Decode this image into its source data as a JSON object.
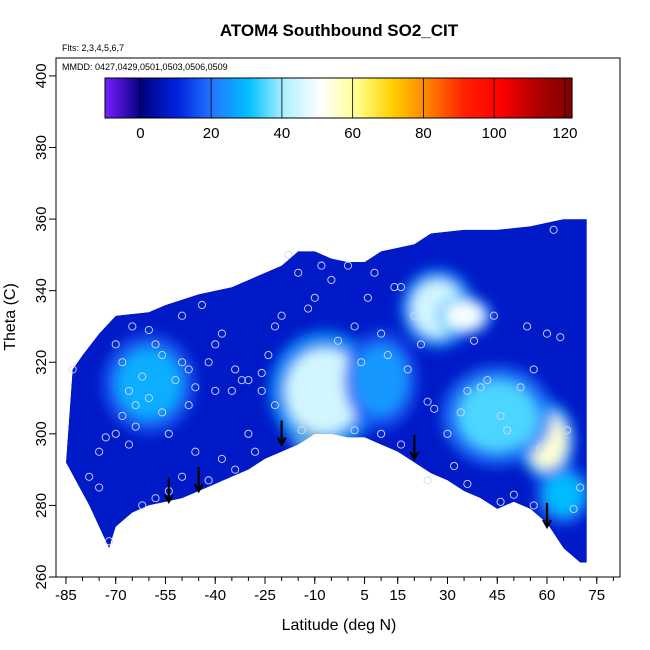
{
  "chart_data": {
    "type": "heatmap",
    "title": "ATOM4 Southbound SO2_CIT",
    "xlabel": "Latitude (deg N)",
    "ylabel": "Theta (C)",
    "xlim": [
      -88,
      82
    ],
    "ylim": [
      260,
      405
    ],
    "x_tick_labels": [
      "-85",
      "-70",
      "-55",
      "-40",
      "-25",
      "-10",
      "5",
      "15",
      "30",
      "45",
      "60",
      "75"
    ],
    "x_tick_values": [
      -85,
      -70,
      -55,
      -40,
      -25,
      -10,
      5,
      15,
      30,
      45,
      60,
      75
    ],
    "x_minor_step": 5,
    "y_tick_labels": [
      "260",
      "280",
      "300",
      "320",
      "340",
      "360",
      "380",
      "400"
    ],
    "y_tick_values": [
      260,
      280,
      300,
      320,
      340,
      360,
      380,
      400
    ],
    "annotations": [
      "Flts: 2,3,4,5,6,7",
      "MMDD: 0427,0429,0501,0503,0506,0509"
    ],
    "colorbar": {
      "range": [
        -10,
        122
      ],
      "tick_values": [
        0,
        20,
        40,
        60,
        80,
        100,
        120
      ],
      "tick_labels": [
        "0",
        "20",
        "40",
        "60",
        "80",
        "100",
        "120"
      ],
      "colors": [
        "#7a1fff",
        "#000080",
        "#0022dd",
        "#2277ff",
        "#00c0ff",
        "#b0f0ff",
        "#ffffff",
        "#ffff90",
        "#ffd000",
        "#ff8000",
        "#ff2000",
        "#ff0000",
        "#b00000",
        "#800000"
      ]
    },
    "grid": false,
    "surface": {
      "lower_boundary": [
        [
          -85,
          292
        ],
        [
          -78,
          280
        ],
        [
          -72,
          268
        ],
        [
          -70,
          274
        ],
        [
          -65,
          278
        ],
        [
          -60,
          280
        ],
        [
          -55,
          281
        ],
        [
          -50,
          282
        ],
        [
          -45,
          284
        ],
        [
          -40,
          286
        ],
        [
          -35,
          288
        ],
        [
          -30,
          290
        ],
        [
          -25,
          293
        ],
        [
          -20,
          295
        ],
        [
          -15,
          297
        ],
        [
          -10,
          300
        ],
        [
          -5,
          300
        ],
        [
          0,
          299
        ],
        [
          5,
          299
        ],
        [
          10,
          297
        ],
        [
          15,
          295
        ],
        [
          20,
          292
        ],
        [
          25,
          289
        ],
        [
          30,
          287
        ],
        [
          35,
          284
        ],
        [
          40,
          282
        ],
        [
          45,
          279
        ],
        [
          50,
          281
        ],
        [
          55,
          279
        ],
        [
          60,
          275
        ],
        [
          65,
          268
        ],
        [
          70,
          264
        ],
        [
          72,
          264
        ]
      ],
      "upper_boundary": [
        [
          -85,
          292
        ],
        [
          -83,
          318
        ],
        [
          -80,
          322
        ],
        [
          -75,
          328
        ],
        [
          -70,
          333
        ],
        [
          -60,
          334
        ],
        [
          -55,
          336
        ],
        [
          -45,
          339
        ],
        [
          -35,
          341
        ],
        [
          -25,
          345
        ],
        [
          -20,
          347
        ],
        [
          -15,
          351
        ],
        [
          -10,
          351
        ],
        [
          -5,
          349
        ],
        [
          0,
          348
        ],
        [
          5,
          348
        ],
        [
          10,
          351
        ],
        [
          15,
          352
        ],
        [
          20,
          353
        ],
        [
          25,
          356
        ],
        [
          35,
          357
        ],
        [
          45,
          357
        ],
        [
          55,
          358
        ],
        [
          60,
          359
        ],
        [
          65,
          360
        ],
        [
          70,
          360
        ],
        [
          72,
          360
        ]
      ],
      "background_value": 8,
      "hotspots": [
        {
          "lat": -10,
          "theta": 304,
          "value": 85,
          "rx": 6,
          "ry": 7
        },
        {
          "lat": -7,
          "theta": 312,
          "value": 45,
          "rx": 12,
          "ry": 12
        },
        {
          "lat": -60,
          "theta": 314,
          "value": 28,
          "rx": 10,
          "ry": 10
        },
        {
          "lat": 27,
          "theta": 335,
          "value": 45,
          "rx": 8,
          "ry": 8
        },
        {
          "lat": 35,
          "theta": 333,
          "value": 50,
          "rx": 6,
          "ry": 4
        },
        {
          "lat": 60,
          "theta": 298,
          "value": 55,
          "rx": 6,
          "ry": 8
        },
        {
          "lat": 45,
          "theta": 305,
          "value": 35,
          "rx": 12,
          "ry": 10
        },
        {
          "lat": 10,
          "theta": 315,
          "value": 25,
          "rx": 8,
          "ry": 10
        },
        {
          "lat": 65,
          "theta": 283,
          "value": 30,
          "rx": 6,
          "ry": 6
        }
      ]
    },
    "samples": {
      "points": [
        [
          -83,
          318
        ],
        [
          -78,
          288
        ],
        [
          -75,
          285
        ],
        [
          -72,
          270
        ],
        [
          -70,
          300
        ],
        [
          -68,
          305
        ],
        [
          -66,
          312
        ],
        [
          -64,
          308
        ],
        [
          -70,
          325
        ],
        [
          -68,
          320
        ],
        [
          -65,
          330
        ],
        [
          -62,
          316
        ],
        [
          -60,
          310
        ],
        [
          -58,
          325
        ],
        [
          -56,
          322
        ],
        [
          -54,
          300
        ],
        [
          -52,
          315
        ],
        [
          -50,
          320
        ],
        [
          -48,
          308
        ],
        [
          -46,
          313
        ],
        [
          -44,
          336
        ],
        [
          -42,
          320
        ],
        [
          -40,
          325
        ],
        [
          -38,
          328
        ],
        [
          -35,
          312
        ],
        [
          -32,
          315
        ],
        [
          -30,
          300
        ],
        [
          -28,
          295
        ],
        [
          -26,
          317
        ],
        [
          -24,
          322
        ],
        [
          -22,
          330
        ],
        [
          -20,
          333
        ],
        [
          -18,
          350
        ],
        [
          -15,
          345
        ],
        [
          -12,
          335
        ],
        [
          -10,
          338
        ],
        [
          -8,
          347
        ],
        [
          -5,
          343
        ],
        [
          -3,
          326
        ],
        [
          0,
          347
        ],
        [
          2,
          330
        ],
        [
          4,
          320
        ],
        [
          6,
          338
        ],
        [
          8,
          345
        ],
        [
          10,
          328
        ],
        [
          12,
          322
        ],
        [
          14,
          341
        ],
        [
          16,
          341
        ],
        [
          18,
          318
        ],
        [
          20,
          333
        ],
        [
          22,
          325
        ],
        [
          24,
          309
        ],
        [
          26,
          307
        ],
        [
          28,
          335
        ],
        [
          30,
          300
        ],
        [
          32,
          291
        ],
        [
          34,
          306
        ],
        [
          36,
          312
        ],
        [
          38,
          326
        ],
        [
          40,
          313
        ],
        [
          42,
          315
        ],
        [
          44,
          333
        ],
        [
          46,
          305
        ],
        [
          48,
          301
        ],
        [
          50,
          283
        ],
        [
          52,
          313
        ],
        [
          54,
          330
        ],
        [
          56,
          318
        ],
        [
          58,
          296
        ],
        [
          60,
          328
        ],
        [
          62,
          357
        ],
        [
          64,
          327
        ],
        [
          66,
          301
        ],
        [
          68,
          279
        ],
        [
          70,
          285
        ],
        [
          -75,
          295
        ],
        [
          -66,
          297
        ],
        [
          -62,
          280
        ],
        [
          -58,
          282
        ],
        [
          -54,
          284
        ],
        [
          -50,
          288
        ],
        [
          -46,
          295
        ],
        [
          -42,
          287
        ],
        [
          -38,
          293
        ],
        [
          -34,
          290
        ],
        [
          -30,
          315
        ],
        [
          -26,
          312
        ],
        [
          -22,
          308
        ],
        [
          -14,
          301
        ],
        [
          2,
          301
        ],
        [
          10,
          300
        ],
        [
          16,
          297
        ],
        [
          24,
          287
        ],
        [
          36,
          286
        ],
        [
          46,
          281
        ],
        [
          56,
          280
        ],
        [
          -73,
          299
        ],
        [
          -64,
          302
        ],
        [
          -56,
          306
        ],
        [
          -48,
          318
        ],
        [
          -40,
          312
        ],
        [
          -34,
          318
        ],
        [
          -60,
          329
        ],
        [
          -50,
          333
        ]
      ],
      "stroke": "#d0d8ff"
    },
    "markers": {
      "arrows_at_lat": [
        -54,
        -45,
        -20,
        20,
        60
      ],
      "arrow_tip_theta": [
        281,
        284,
        297,
        293,
        274
      ]
    }
  }
}
